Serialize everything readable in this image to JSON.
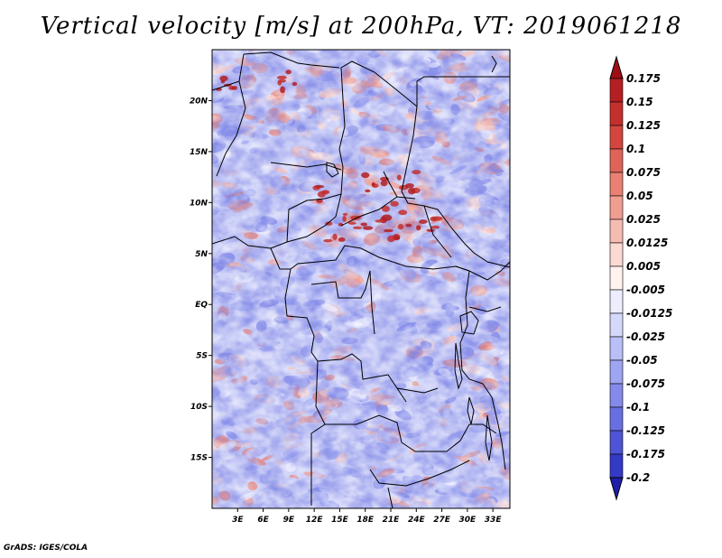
{
  "title": "Vertical velocity [m/s] at 200hPa, VT: 2019061218",
  "credit": "GrADS: IGES/COLA",
  "chart_data": {
    "type": "heatmap",
    "title": "Vertical velocity [m/s] at 200hPa, VT: 2019061218",
    "variable": "Vertical velocity",
    "units": "m/s",
    "level": "200hPa",
    "valid_time": "2019061218",
    "lon_range": [
      0,
      35
    ],
    "lat_range": [
      -20,
      25
    ],
    "x_ticks": [
      {
        "value": 3,
        "label": "3E"
      },
      {
        "value": 6,
        "label": "6E"
      },
      {
        "value": 9,
        "label": "9E"
      },
      {
        "value": 12,
        "label": "12E"
      },
      {
        "value": 15,
        "label": "15E"
      },
      {
        "value": 18,
        "label": "18E"
      },
      {
        "value": 21,
        "label": "21E"
      },
      {
        "value": 24,
        "label": "24E"
      },
      {
        "value": 27,
        "label": "27E"
      },
      {
        "value": 30,
        "label": "30E"
      },
      {
        "value": 33,
        "label": "33E"
      }
    ],
    "y_ticks": [
      {
        "value": 20,
        "label": "20N"
      },
      {
        "value": 15,
        "label": "15N"
      },
      {
        "value": 10,
        "label": "10N"
      },
      {
        "value": 5,
        "label": "5N"
      },
      {
        "value": 0,
        "label": "EQ"
      },
      {
        "value": -5,
        "label": "5S"
      },
      {
        "value": -10,
        "label": "10S"
      },
      {
        "value": -15,
        "label": "15S"
      }
    ],
    "colorbar": {
      "levels": [
        "0.175",
        "0.15",
        "0.125",
        "0.1",
        "0.075",
        "0.05",
        "0.025",
        "0.0125",
        "0.005",
        "-0.005",
        "-0.0125",
        "-0.025",
        "-0.05",
        "-0.075",
        "-0.1",
        "-0.125",
        "-0.175",
        "-0.2"
      ],
      "colors": [
        "#a00e15",
        "#b41f22",
        "#c3302e",
        "#d2463f",
        "#de6359",
        "#e98073",
        "#f09d92",
        "#f6bcb3",
        "#fbdad4",
        "#fff2ef",
        "#eceefe",
        "#d4d8fb",
        "#b9bff7",
        "#9ea5f1",
        "#838ae9",
        "#686fe0",
        "#4e54d5",
        "#3439c6",
        "#1e1fa8"
      ]
    }
  }
}
